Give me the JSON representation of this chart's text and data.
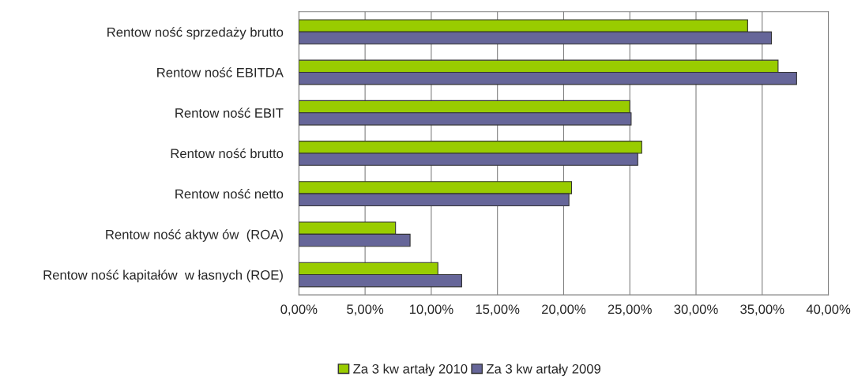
{
  "chart_data": {
    "type": "bar",
    "orientation": "horizontal",
    "categories": [
      "Rentow ność sprzedaży brutto",
      "Rentow ność EBITDA",
      "Rentow ność EBIT",
      "Rentow ność brutto",
      "Rentow ność netto",
      "Rentow ność aktyw ów  (ROA)",
      "Rentow ność kapitałów  w łasnych (ROE)"
    ],
    "series": [
      {
        "name": "Za 3 kw artały 2010",
        "color": "#99cc00",
        "values": [
          0.339,
          0.362,
          0.25,
          0.259,
          0.206,
          0.073,
          0.105
        ]
      },
      {
        "name": "Za 3 kw artały 2009",
        "color": "#666699",
        "values": [
          0.357,
          0.376,
          0.251,
          0.256,
          0.204,
          0.084,
          0.123
        ]
      }
    ],
    "xlim": [
      0,
      0.4
    ],
    "xticks": [
      {
        "value": 0,
        "label": "0,00%"
      },
      {
        "value": 0.05,
        "label": "5,00%"
      },
      {
        "value": 0.1,
        "label": "10,00%"
      },
      {
        "value": 0.15,
        "label": "15,00%"
      },
      {
        "value": 0.2,
        "label": "20,00%"
      },
      {
        "value": 0.25,
        "label": "25,00%"
      },
      {
        "value": 0.3,
        "label": "30,00%"
      },
      {
        "value": 0.35,
        "label": "35,00%"
      },
      {
        "value": 0.4,
        "label": "40,00%"
      }
    ],
    "grid": "x",
    "legend": "bottom"
  }
}
